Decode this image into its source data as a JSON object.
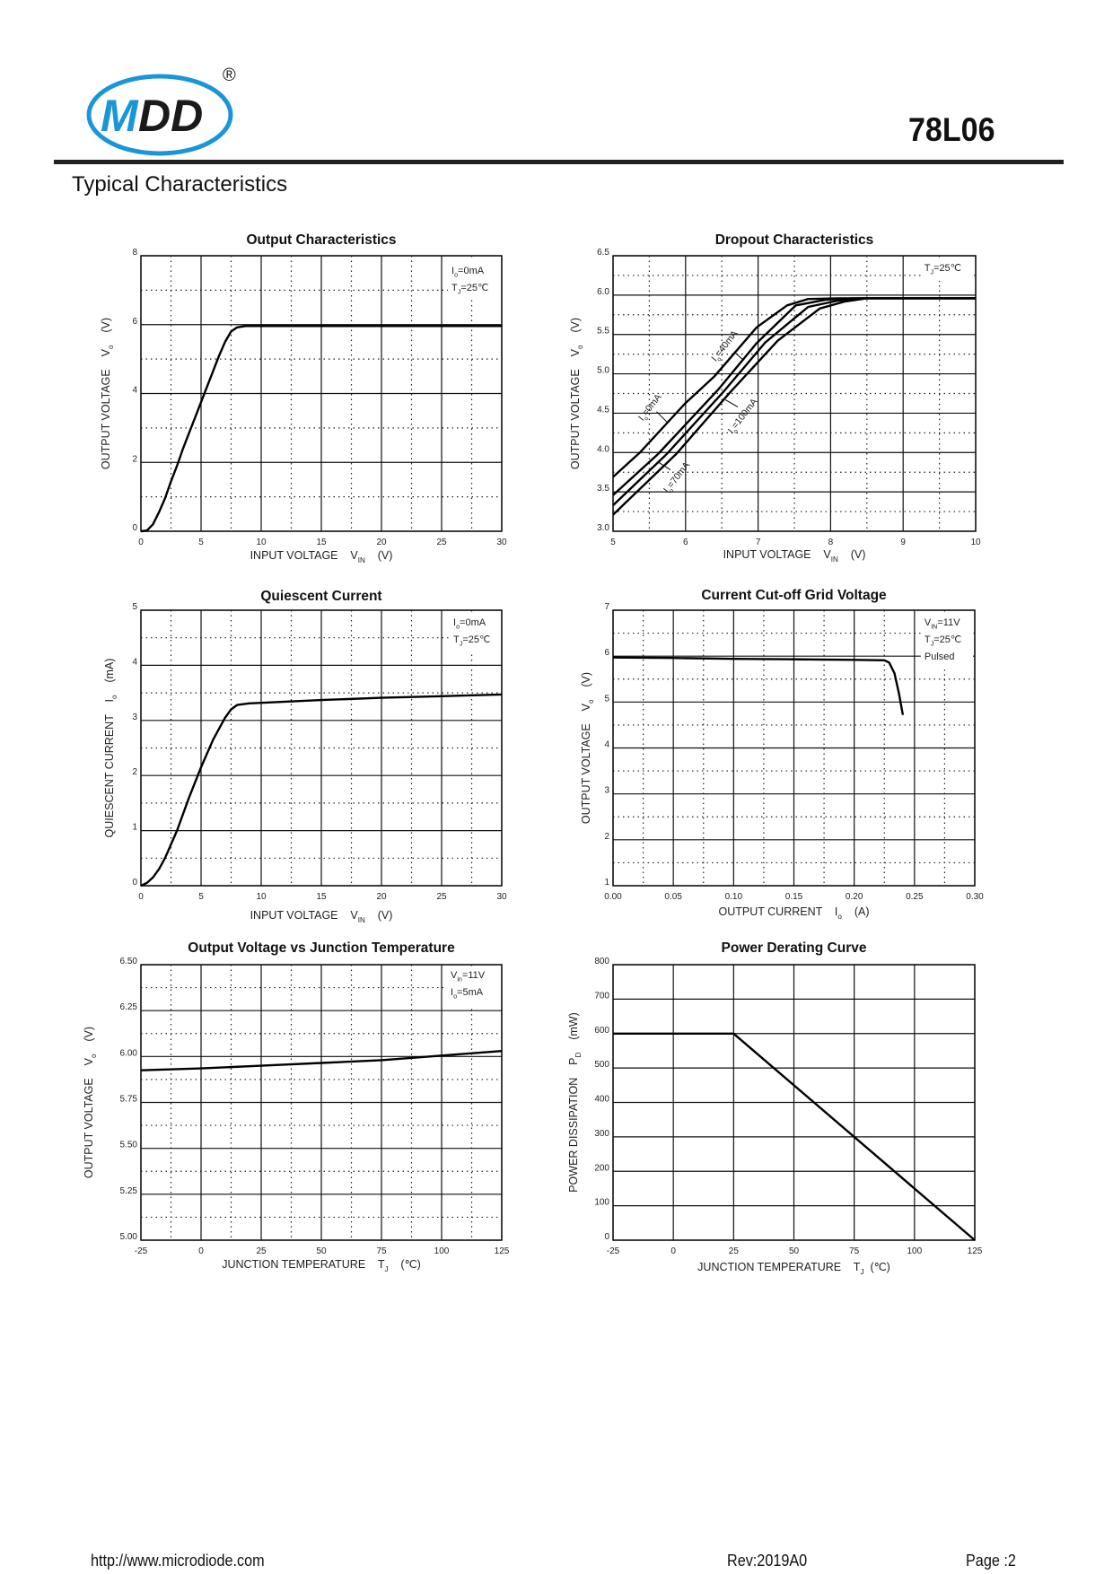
{
  "header": {
    "logo_text": "MDD",
    "registered_mark": "®",
    "part_number": "78L06",
    "section_title": "Typical Characteristics",
    "brand_colors": {
      "blue": "#1a96d8",
      "black": "#1a1a1a"
    }
  },
  "footer": {
    "url": "http://www.microdiode.com",
    "revision": "Rev:2019A0",
    "page": "Page :2"
  },
  "chart_data": [
    {
      "type": "line",
      "title": "Output  Characteristics",
      "xlabel": {
        "pre": "INPUT VOLTAGE    V",
        "sub": "IN",
        "post": "    (V)"
      },
      "ylabel": {
        "pre": "OUTPUT VOLTAGE    V",
        "sub": "o",
        "post": "    (V)"
      },
      "xlim": [
        0,
        30
      ],
      "ylim": [
        0,
        8
      ],
      "xticks": [
        "0",
        "5",
        "10",
        "15",
        "20",
        "25",
        "30"
      ],
      "yticks": [
        "0",
        "2",
        "4",
        "6",
        "8"
      ],
      "grid": {
        "major_x": 5,
        "minor_x": 2.5,
        "major_y": 2,
        "minor_y": 1
      },
      "conditions": [
        {
          "pre": "I",
          "sub": "o",
          "post": "=0mA"
        },
        {
          "pre": "T",
          "sub": "J",
          "post": "=25℃"
        }
      ],
      "series": [
        {
          "x": [
            0,
            0.5,
            1,
            1.5,
            2,
            2.5,
            3,
            3.5,
            4,
            4.5,
            5,
            5.5,
            6,
            6.5,
            7,
            7.5,
            8,
            8.7,
            30
          ],
          "y": [
            0,
            0.02,
            0.2,
            0.55,
            0.95,
            1.45,
            1.9,
            2.4,
            2.85,
            3.3,
            3.75,
            4.2,
            4.65,
            5.1,
            5.5,
            5.8,
            5.92,
            5.96,
            5.96
          ]
        }
      ]
    },
    {
      "type": "line",
      "title": "Dropout Characteristics",
      "xlabel": {
        "pre": "INPUT VOLTAGE    V",
        "sub": "IN",
        "post": "    (V)"
      },
      "ylabel": {
        "pre": "OUTPUT VOLTAGE    V",
        "sub": "o",
        "post": "    (V)"
      },
      "xlim": [
        5,
        10
      ],
      "ylim": [
        3.0,
        6.5
      ],
      "xticks": [
        "5",
        "6",
        "7",
        "8",
        "9",
        "10"
      ],
      "yticks": [
        "3.0",
        "3.5",
        "4.0",
        "4.5",
        "5.0",
        "5.5",
        "6.0",
        "6.5"
      ],
      "grid": {
        "major_x": 1,
        "minor_x": 0.5,
        "major_y": 0.5,
        "minor_y": 0.25
      },
      "conditions": [
        {
          "pre": "T",
          "sub": "J",
          "post": "=25℃"
        }
      ],
      "series": [
        {
          "name_parts": {
            "pre": "I",
            "sub": "o",
            "post": "=0mA"
          },
          "x": [
            5,
            5.37,
            5.99,
            6.4,
            6.98,
            7.4,
            7.69,
            8.1,
            10
          ],
          "y": [
            3.69,
            4.0,
            4.62,
            4.97,
            5.59,
            5.87,
            5.95,
            5.96,
            5.96
          ]
        },
        {
          "name_parts": {
            "pre": "I",
            "sub": "o",
            "post": "=40mA"
          },
          "x": [
            5,
            5.62,
            6.45,
            6.98,
            7.52,
            7.93,
            8.3,
            10
          ],
          "y": [
            3.46,
            3.98,
            4.8,
            5.39,
            5.87,
            5.94,
            5.96,
            5.96
          ]
        },
        {
          "name_parts": {
            "pre": "I",
            "sub": "o",
            "post": "=70mA"
          },
          "x": [
            5,
            5.74,
            6.53,
            7.1,
            7.69,
            8.1,
            8.4,
            10
          ],
          "y": [
            3.33,
            3.98,
            4.78,
            5.4,
            5.85,
            5.93,
            5.96,
            5.96
          ]
        },
        {
          "name_parts": {
            "pre": "I",
            "sub": "o",
            "post": "=100mA"
          },
          "x": [
            5,
            5.87,
            6.61,
            7.27,
            7.85,
            8.2,
            8.5,
            10
          ],
          "y": [
            3.21,
            3.98,
            4.76,
            5.42,
            5.83,
            5.92,
            5.96,
            5.96
          ]
        }
      ]
    },
    {
      "type": "line",
      "title": "Quiescent Current",
      "xlabel": {
        "pre": "INPUT VOLTAGE    V",
        "sub": "IN",
        "post": "    (V)"
      },
      "ylabel": {
        "pre": "QUIESCENT CURRENT    I",
        "sub": "o",
        "post": "    (mA)"
      },
      "xlim": [
        0,
        30
      ],
      "ylim": [
        0,
        5
      ],
      "xticks": [
        "0",
        "5",
        "10",
        "15",
        "20",
        "25",
        "30"
      ],
      "yticks": [
        "0",
        "1",
        "2",
        "3",
        "4",
        "5"
      ],
      "grid": {
        "major_x": 5,
        "minor_x": 2.5,
        "major_y": 1,
        "minor_y": 0.5
      },
      "conditions": [
        {
          "pre": "I",
          "sub": "o",
          "post": "=0mA"
        },
        {
          "pre": "T",
          "sub": "J",
          "post": "=25℃"
        }
      ],
      "series": [
        {
          "x": [
            0,
            0.5,
            1,
            1.5,
            2,
            2.5,
            3,
            4,
            5,
            6,
            7,
            7.5,
            8,
            9,
            10,
            15,
            20,
            25,
            30
          ],
          "y": [
            0,
            0.05,
            0.15,
            0.3,
            0.5,
            0.75,
            1.0,
            1.6,
            2.15,
            2.65,
            3.05,
            3.2,
            3.28,
            3.31,
            3.32,
            3.37,
            3.41,
            3.44,
            3.47
          ]
        }
      ]
    },
    {
      "type": "line",
      "title": "Current  Cut-off Grid Voltage",
      "xlabel": {
        "pre": "OUTPUT CURRENT    I",
        "sub": "o",
        "post": "    (A)"
      },
      "ylabel": {
        "pre": "OUTPUT VOLTAGE    V",
        "sub": "o",
        "post": "    (V)"
      },
      "xlim": [
        0,
        0.3
      ],
      "ylim": [
        1,
        7
      ],
      "xticks": [
        "0.00",
        "0.05",
        "0.10",
        "0.15",
        "0.20",
        "0.25",
        "0.30"
      ],
      "yticks": [
        "1",
        "2",
        "3",
        "4",
        "5",
        "6",
        "7"
      ],
      "grid": {
        "major_x": 0.05,
        "minor_x": 0.025,
        "major_y": 1,
        "minor_y": 0.5
      },
      "conditions": [
        {
          "pre": "V",
          "sub": "IN",
          "post": "=11V"
        },
        {
          "pre": "T",
          "sub": "J",
          "post": "=25℃"
        },
        {
          "pre": "Pulsed",
          "sub": "",
          "post": ""
        }
      ],
      "series": [
        {
          "x": [
            0,
            0.05,
            0.1,
            0.15,
            0.2,
            0.225,
            0.229,
            0.2334,
            0.237,
            0.2404
          ],
          "y": [
            5.97,
            5.96,
            5.94,
            5.93,
            5.92,
            5.91,
            5.86,
            5.63,
            5.2,
            4.72
          ]
        }
      ]
    },
    {
      "type": "line",
      "title": "Output Voltage vs Junction Temperature",
      "xlabel": {
        "pre": "JUNCTION TEMPERATURE    T",
        "sub": "J",
        "post": "    (℃)"
      },
      "ylabel": {
        "pre": "OUTPUT VOLTAGE    V",
        "sub": "o",
        "post": "    (V)"
      },
      "xlim": [
        -25,
        125
      ],
      "ylim": [
        5.0,
        6.5
      ],
      "xticks": [
        "-25",
        "0",
        "25",
        "50",
        "75",
        "100",
        "125"
      ],
      "yticks": [
        "5.00",
        "5.25",
        "5.50",
        "5.75",
        "6.00",
        "6.25",
        "6.50"
      ],
      "grid": {
        "major_x": 25,
        "minor_x": 12.5,
        "major_y": 0.25,
        "minor_y": 0.125
      },
      "conditions": [
        {
          "pre": "V",
          "sub": "in",
          "post": "=11V"
        },
        {
          "pre": "I",
          "sub": "o",
          "post": "=5mA"
        }
      ],
      "series": [
        {
          "x": [
            -25,
            0,
            25,
            50,
            75,
            100,
            125
          ],
          "y": [
            5.925,
            5.935,
            5.95,
            5.965,
            5.98,
            6.005,
            6.03
          ]
        }
      ]
    },
    {
      "type": "line",
      "title": "Power Derating Curve",
      "xlabel": {
        "pre": "JUNCTION TEMPERATURE    T",
        "sub": "J",
        "post": "  (℃)"
      },
      "ylabel": {
        "pre": "POWER DISSIPATION    P",
        "sub": "D",
        "post": "    (mW)"
      },
      "xlim": [
        -25,
        125
      ],
      "ylim": [
        0,
        800
      ],
      "xticks": [
        "-25",
        "0",
        "25",
        "50",
        "75",
        "100",
        "125"
      ],
      "yticks": [
        "0",
        "100",
        "200",
        "300",
        "400",
        "500",
        "600",
        "700",
        "800"
      ],
      "grid": {
        "major_x": 25,
        "minor_x": null,
        "major_y": 100,
        "minor_y": null
      },
      "conditions": [],
      "series": [
        {
          "x": [
            -25,
            25,
            125
          ],
          "y": [
            600,
            600,
            0
          ]
        }
      ]
    }
  ]
}
